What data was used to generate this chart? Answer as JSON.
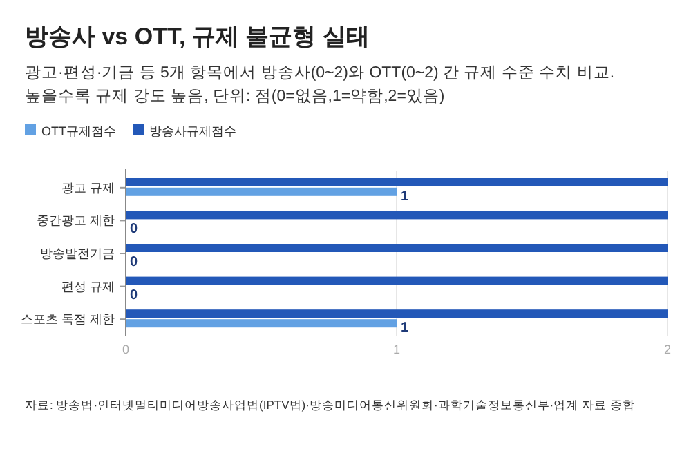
{
  "chart_data": {
    "type": "bar",
    "orientation": "horizontal",
    "title": "방송사 vs OTT, 규제 불균형 실태",
    "subtitle": "광고·편성·기금 등 5개 항목에서 방송사(0~2)와 OTT(0~2) 간 규제 수준 수치 비교. 높을수록 규제 강도 높음, 단위: 점(0=없음,1=약함,2=있음)",
    "categories": [
      "광고 규제",
      "중간광고 제한",
      "방송발전기금",
      "편성 규제",
      "스포츠 독점 제한"
    ],
    "series": [
      {
        "name": "OTT규제점수",
        "color": "#62a1e3",
        "values": [
          1,
          0,
          0,
          0,
          1
        ],
        "value_labels": [
          "1",
          "0",
          "0",
          "0",
          "1"
        ]
      },
      {
        "name": "방송사규제점수",
        "color": "#2358b8",
        "values": [
          2,
          2,
          2,
          2,
          2
        ]
      }
    ],
    "xlim": [
      0,
      2
    ],
    "xticks": [
      0,
      1,
      2
    ],
    "grid": "x",
    "legend": "top left",
    "annotations": [
      "자료: 방송법·인터넷멀티미디어방송사업법(IPTV법)·방송미디어통신위원회·과학기술정보통신부·업계 자료 종합"
    ]
  }
}
